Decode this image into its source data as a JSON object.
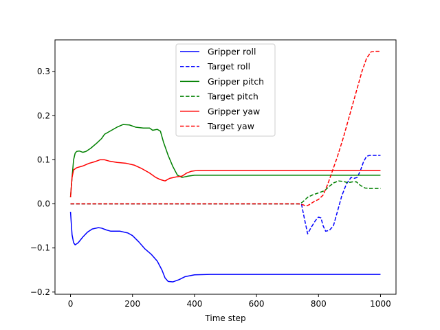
{
  "chart_data": {
    "type": "line",
    "title": "",
    "xlabel": "Time step",
    "ylabel": "",
    "xlim": [
      -50,
      1050
    ],
    "ylim": [
      -0.205,
      0.372
    ],
    "xticks": [
      0,
      200,
      400,
      600,
      800,
      1000
    ],
    "yticks": [
      -0.2,
      -0.1,
      0.0,
      0.1,
      0.2,
      0.3
    ],
    "xtick_labels": [
      "0",
      "200",
      "400",
      "600",
      "800",
      "1000"
    ],
    "ytick_labels": [
      "−0.2",
      "−0.1",
      "0.0",
      "0.1",
      "0.2",
      "0.3"
    ],
    "grid": false,
    "legend_position": "upper-center",
    "series": [
      {
        "name": "Gripper roll",
        "color": "#0000ff",
        "dash": "solid",
        "points": [
          [
            0,
            -0.018
          ],
          [
            5,
            -0.07
          ],
          [
            10,
            -0.088
          ],
          [
            15,
            -0.093
          ],
          [
            25,
            -0.088
          ],
          [
            40,
            -0.075
          ],
          [
            55,
            -0.064
          ],
          [
            70,
            -0.057
          ],
          [
            90,
            -0.054
          ],
          [
            100,
            -0.055
          ],
          [
            115,
            -0.059
          ],
          [
            130,
            -0.062
          ],
          [
            160,
            -0.062
          ],
          [
            185,
            -0.066
          ],
          [
            200,
            -0.072
          ],
          [
            220,
            -0.086
          ],
          [
            240,
            -0.102
          ],
          [
            260,
            -0.114
          ],
          [
            280,
            -0.13
          ],
          [
            295,
            -0.15
          ],
          [
            305,
            -0.168
          ],
          [
            315,
            -0.176
          ],
          [
            330,
            -0.177
          ],
          [
            350,
            -0.172
          ],
          [
            370,
            -0.165
          ],
          [
            400,
            -0.161
          ],
          [
            450,
            -0.16
          ],
          [
            600,
            -0.16
          ],
          [
            800,
            -0.16
          ],
          [
            1000,
            -0.16
          ]
        ]
      },
      {
        "name": "Target roll",
        "color": "#0000ff",
        "dash": "dashed",
        "points": [
          [
            0,
            0
          ],
          [
            100,
            0
          ],
          [
            200,
            0
          ],
          [
            300,
            0
          ],
          [
            400,
            0
          ],
          [
            500,
            0
          ],
          [
            600,
            0
          ],
          [
            700,
            0
          ],
          [
            745,
            0
          ],
          [
            755,
            -0.035
          ],
          [
            765,
            -0.068
          ],
          [
            775,
            -0.055
          ],
          [
            790,
            -0.038
          ],
          [
            800,
            -0.03
          ],
          [
            808,
            -0.032
          ],
          [
            815,
            -0.05
          ],
          [
            823,
            -0.062
          ],
          [
            835,
            -0.06
          ],
          [
            848,
            -0.05
          ],
          [
            860,
            -0.02
          ],
          [
            875,
            0.018
          ],
          [
            890,
            0.045
          ],
          [
            905,
            0.06
          ],
          [
            915,
            0.058
          ],
          [
            925,
            0.06
          ],
          [
            935,
            0.075
          ],
          [
            945,
            0.095
          ],
          [
            955,
            0.108
          ],
          [
            965,
            0.11
          ],
          [
            1000,
            0.11
          ]
        ]
      },
      {
        "name": "Gripper pitch",
        "color": "#008000",
        "dash": "solid",
        "points": [
          [
            0,
            0.015
          ],
          [
            5,
            0.06
          ],
          [
            10,
            0.1
          ],
          [
            15,
            0.115
          ],
          [
            20,
            0.119
          ],
          [
            28,
            0.12
          ],
          [
            40,
            0.117
          ],
          [
            50,
            0.119
          ],
          [
            65,
            0.126
          ],
          [
            85,
            0.138
          ],
          [
            100,
            0.148
          ],
          [
            110,
            0.158
          ],
          [
            130,
            0.166
          ],
          [
            150,
            0.174
          ],
          [
            170,
            0.18
          ],
          [
            190,
            0.179
          ],
          [
            210,
            0.174
          ],
          [
            235,
            0.172
          ],
          [
            255,
            0.172
          ],
          [
            265,
            0.167
          ],
          [
            280,
            0.169
          ],
          [
            290,
            0.165
          ],
          [
            300,
            0.14
          ],
          [
            315,
            0.11
          ],
          [
            330,
            0.085
          ],
          [
            345,
            0.065
          ],
          [
            360,
            0.06
          ],
          [
            380,
            0.063
          ],
          [
            400,
            0.065
          ],
          [
            500,
            0.065
          ],
          [
            700,
            0.065
          ],
          [
            900,
            0.065
          ],
          [
            1000,
            0.065
          ]
        ]
      },
      {
        "name": "Target pitch",
        "color": "#008000",
        "dash": "dashed",
        "points": [
          [
            0,
            0
          ],
          [
            200,
            0
          ],
          [
            400,
            0
          ],
          [
            600,
            0
          ],
          [
            740,
            0
          ],
          [
            750,
            0.005
          ],
          [
            765,
            0.015
          ],
          [
            780,
            0.02
          ],
          [
            800,
            0.025
          ],
          [
            820,
            0.03
          ],
          [
            835,
            0.04
          ],
          [
            850,
            0.048
          ],
          [
            865,
            0.052
          ],
          [
            880,
            0.051
          ],
          [
            895,
            0.048
          ],
          [
            910,
            0.05
          ],
          [
            922,
            0.05
          ],
          [
            935,
            0.042
          ],
          [
            950,
            0.036
          ],
          [
            965,
            0.035
          ],
          [
            1000,
            0.035
          ]
        ]
      },
      {
        "name": "Gripper yaw",
        "color": "#ff0000",
        "dash": "solid",
        "points": [
          [
            0,
            0.015
          ],
          [
            5,
            0.06
          ],
          [
            10,
            0.077
          ],
          [
            20,
            0.082
          ],
          [
            40,
            0.086
          ],
          [
            60,
            0.092
          ],
          [
            80,
            0.096
          ],
          [
            95,
            0.1
          ],
          [
            110,
            0.1
          ],
          [
            125,
            0.097
          ],
          [
            150,
            0.094
          ],
          [
            180,
            0.092
          ],
          [
            205,
            0.088
          ],
          [
            230,
            0.08
          ],
          [
            255,
            0.07
          ],
          [
            275,
            0.06
          ],
          [
            290,
            0.055
          ],
          [
            305,
            0.052
          ],
          [
            320,
            0.058
          ],
          [
            340,
            0.061
          ],
          [
            360,
            0.063
          ],
          [
            375,
            0.07
          ],
          [
            390,
            0.074
          ],
          [
            410,
            0.076
          ],
          [
            500,
            0.076
          ],
          [
            700,
            0.076
          ],
          [
            900,
            0.076
          ],
          [
            1000,
            0.076
          ]
        ]
      },
      {
        "name": "Target yaw",
        "color": "#ff0000",
        "dash": "dashed",
        "points": [
          [
            0,
            0
          ],
          [
            200,
            0
          ],
          [
            400,
            0
          ],
          [
            600,
            0
          ],
          [
            735,
            0
          ],
          [
            750,
            -0.002
          ],
          [
            760,
            -0.005
          ],
          [
            770,
            -0.002
          ],
          [
            785,
            0.005
          ],
          [
            800,
            0.01
          ],
          [
            815,
            0.02
          ],
          [
            830,
            0.045
          ],
          [
            845,
            0.075
          ],
          [
            860,
            0.105
          ],
          [
            880,
            0.15
          ],
          [
            900,
            0.2
          ],
          [
            920,
            0.25
          ],
          [
            940,
            0.3
          ],
          [
            955,
            0.33
          ],
          [
            970,
            0.345
          ],
          [
            985,
            0.346
          ],
          [
            1000,
            0.346
          ]
        ]
      }
    ]
  }
}
